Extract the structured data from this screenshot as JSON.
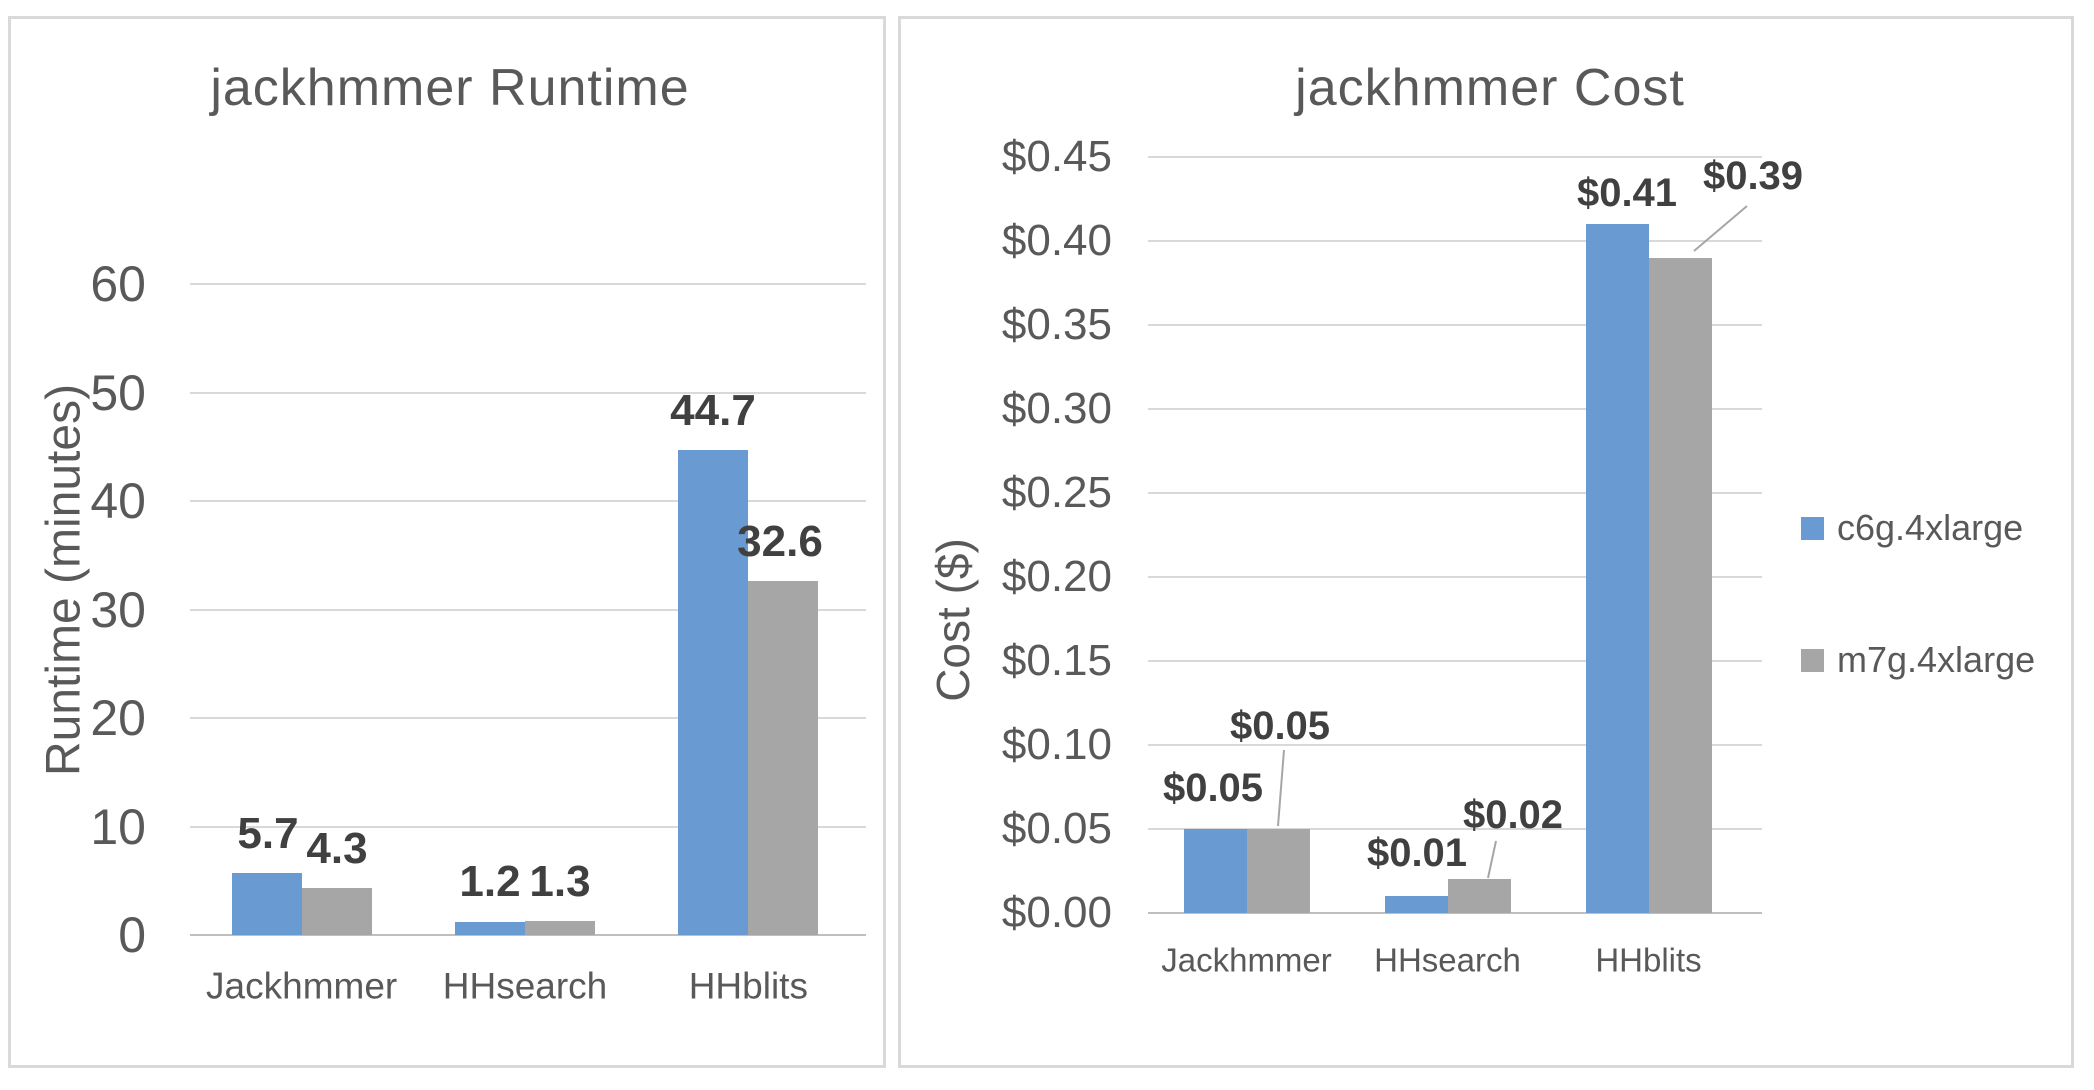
{
  "colors": {
    "series_blue": "#699AD2",
    "series_gray": "#A6A6A6",
    "axis_text": "#595959",
    "data_label_text": "#404040",
    "gridline": "#D9D9D9",
    "axis_line": "#BFBFBF",
    "leader_line": "#A6A6A6",
    "panel_border": "#D9D9D9",
    "background": "#FFFFFF"
  },
  "legend": {
    "position": "right",
    "items": [
      {
        "label": "c6g.4xlarge",
        "color": "#699AD2"
      },
      {
        "label": "m7g.4xlarge",
        "color": "#A6A6A6"
      }
    ]
  },
  "chart_data": [
    {
      "type": "bar",
      "title": "jackhmmer Runtime",
      "xlabel": "",
      "ylabel": "Runtime (minutes)",
      "categories": [
        "Jackhmmer",
        "HHsearch",
        "HHblits"
      ],
      "series": [
        {
          "name": "c6g.4xlarge",
          "color": "#699AD2",
          "values": [
            5.7,
            1.2,
            44.7
          ]
        },
        {
          "name": "m7g.4xlarge",
          "color": "#A6A6A6",
          "values": [
            4.3,
            1.3,
            32.6
          ]
        }
      ],
      "data_labels": [
        [
          "5.7",
          "1.2",
          "44.7"
        ],
        [
          "4.3",
          "1.3",
          "32.6"
        ]
      ],
      "yticks": [
        {
          "v": 0,
          "label": "0"
        },
        {
          "v": 10,
          "label": "10"
        },
        {
          "v": 20,
          "label": "20"
        },
        {
          "v": 30,
          "label": "30"
        },
        {
          "v": 40,
          "label": "40"
        },
        {
          "v": 50,
          "label": "50"
        },
        {
          "v": 60,
          "label": "60"
        }
      ],
      "ylim": [
        0,
        60
      ],
      "grid": true,
      "legend_position": "none"
    },
    {
      "type": "bar",
      "title": "jackhmmer Cost",
      "xlabel": "",
      "ylabel": "Cost ($)",
      "categories": [
        "Jackhmmer",
        "HHsearch",
        "HHblits"
      ],
      "series": [
        {
          "name": "c6g.4xlarge",
          "color": "#699AD2",
          "values": [
            0.05,
            0.01,
            0.41
          ]
        },
        {
          "name": "m7g.4xlarge",
          "color": "#A6A6A6",
          "values": [
            0.05,
            0.02,
            0.39
          ]
        }
      ],
      "data_labels": [
        [
          "$0.05",
          "$0.01",
          "$0.41"
        ],
        [
          "$0.05",
          "$0.02",
          "$0.39"
        ]
      ],
      "yticks": [
        {
          "v": 0.0,
          "label": "$0.00"
        },
        {
          "v": 0.05,
          "label": "$0.05"
        },
        {
          "v": 0.1,
          "label": "$0.10"
        },
        {
          "v": 0.15,
          "label": "$0.15"
        },
        {
          "v": 0.2,
          "label": "$0.20"
        },
        {
          "v": 0.25,
          "label": "$0.25"
        },
        {
          "v": 0.3,
          "label": "$0.30"
        },
        {
          "v": 0.35,
          "label": "$0.35"
        },
        {
          "v": 0.4,
          "label": "$0.40"
        },
        {
          "v": 0.45,
          "label": "$0.45"
        }
      ],
      "ylim": [
        0,
        0.45
      ],
      "grid": true,
      "legend_position": "right"
    }
  ]
}
